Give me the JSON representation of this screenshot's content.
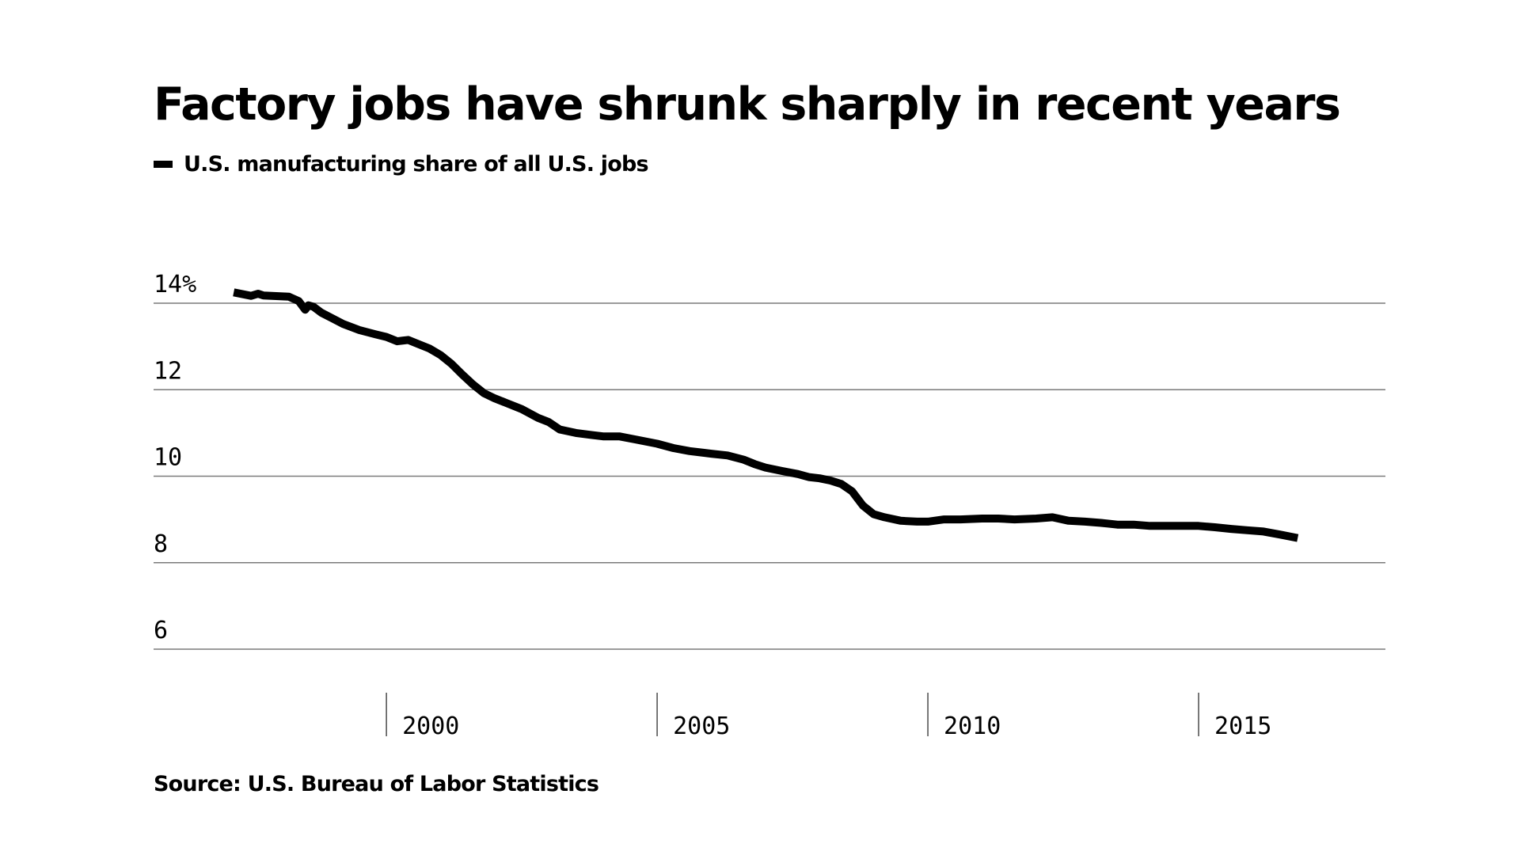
{
  "chart_data": {
    "type": "line",
    "title": "Factory jobs have shrunk sharply in recent years",
    "legend": {
      "label": "U.S. manufacturing share of all U.S. jobs",
      "placement": "top-left"
    },
    "source": "Source: U.S. Bureau of Labor Statistics",
    "line_color": "#000000",
    "grid": true,
    "ylim": [
      6,
      14
    ],
    "xlim": [
      1995.7,
      2018.45
    ],
    "y_ticks": [
      {
        "value": 14,
        "label": "14%"
      },
      {
        "value": 12,
        "label": "12"
      },
      {
        "value": 10,
        "label": "10"
      },
      {
        "value": 8,
        "label": "8"
      },
      {
        "value": 6,
        "label": "6"
      }
    ],
    "x_ticks": [
      {
        "value": 2000,
        "label": "2000"
      },
      {
        "value": 2005,
        "label": "2005"
      },
      {
        "value": 2010,
        "label": "2010"
      },
      {
        "value": 2015,
        "label": "2015"
      }
    ],
    "series": [
      {
        "x": [
          1997.18,
          1997.5,
          1997.63,
          1997.73,
          1998.2,
          1998.38,
          1998.5,
          1998.56,
          1998.65,
          1998.8,
          1999.0,
          1999.2,
          1999.5,
          1999.8,
          2000.0,
          2000.2,
          2000.4,
          2000.6,
          2000.8,
          2001.0,
          2001.2,
          2001.4,
          2001.6,
          2001.8,
          2002.0,
          2002.2,
          2002.5,
          2002.8,
          2003.0,
          2003.2,
          2003.5,
          2003.8,
          2004.0,
          2004.3,
          2004.6,
          2005.0,
          2005.3,
          2005.6,
          2006.0,
          2006.3,
          2006.6,
          2006.8,
          2007.0,
          2007.3,
          2007.6,
          2007.8,
          2008.0,
          2008.2,
          2008.4,
          2008.6,
          2008.8,
          2009.0,
          2009.2,
          2009.5,
          2009.8,
          2010.0,
          2010.3,
          2010.6,
          2011.0,
          2011.3,
          2011.6,
          2012.0,
          2012.3,
          2012.6,
          2012.9,
          2013.2,
          2013.5,
          2013.8,
          2014.1,
          2014.4,
          2014.7,
          2015.0,
          2015.3,
          2015.6,
          2015.9,
          2016.2,
          2016.5,
          2016.83
        ],
        "values": [
          14.25,
          14.17,
          14.22,
          14.18,
          14.15,
          14.05,
          13.85,
          13.95,
          13.92,
          13.78,
          13.65,
          13.52,
          13.38,
          13.28,
          13.22,
          13.12,
          13.15,
          13.05,
          12.95,
          12.8,
          12.6,
          12.35,
          12.12,
          11.92,
          11.8,
          11.7,
          11.55,
          11.35,
          11.25,
          11.08,
          11.0,
          10.95,
          10.92,
          10.92,
          10.85,
          10.75,
          10.65,
          10.58,
          10.52,
          10.48,
          10.38,
          10.28,
          10.2,
          10.12,
          10.05,
          9.98,
          9.95,
          9.9,
          9.82,
          9.65,
          9.32,
          9.12,
          9.05,
          8.97,
          8.95,
          8.95,
          9.0,
          9.0,
          9.02,
          9.02,
          9.0,
          9.02,
          9.05,
          8.97,
          8.95,
          8.92,
          8.88,
          8.88,
          8.85,
          8.85,
          8.85,
          8.85,
          8.82,
          8.78,
          8.75,
          8.72,
          8.65,
          8.57
        ]
      }
    ]
  }
}
